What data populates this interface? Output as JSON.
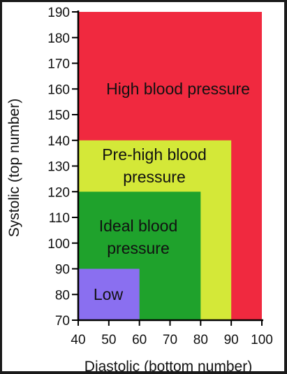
{
  "chart_data": {
    "type": "area",
    "title": "",
    "xlabel": "Diastolic (bottom number)",
    "ylabel": "Systolic (top number)",
    "xlim": [
      40,
      100
    ],
    "ylim": [
      70,
      190
    ],
    "x_ticks": [
      40,
      50,
      60,
      70,
      80,
      90,
      100
    ],
    "y_ticks": [
      70,
      80,
      90,
      100,
      110,
      120,
      130,
      140,
      150,
      160,
      170,
      180,
      190
    ],
    "grid": false,
    "legend": "none",
    "regions": [
      {
        "name": "High blood pressure",
        "label_lines": [
          "High blood pressure"
        ],
        "x_range": [
          40,
          100
        ],
        "y_range": [
          70,
          190
        ],
        "color": "#f0293f"
      },
      {
        "name": "Pre-high blood pressure",
        "label_lines": [
          "Pre-high blood",
          "pressure"
        ],
        "x_range": [
          40,
          90
        ],
        "y_range": [
          70,
          140
        ],
        "color": "#d4e838"
      },
      {
        "name": "Ideal blood pressure",
        "label_lines": [
          "Ideal blood",
          "pressure"
        ],
        "x_range": [
          40,
          80
        ],
        "y_range": [
          70,
          120
        ],
        "color": "#1fa22c"
      },
      {
        "name": "Low",
        "label_lines": [
          "Low"
        ],
        "x_range": [
          40,
          60
        ],
        "y_range": [
          70,
          90
        ],
        "color": "#8a6ff0"
      }
    ]
  }
}
